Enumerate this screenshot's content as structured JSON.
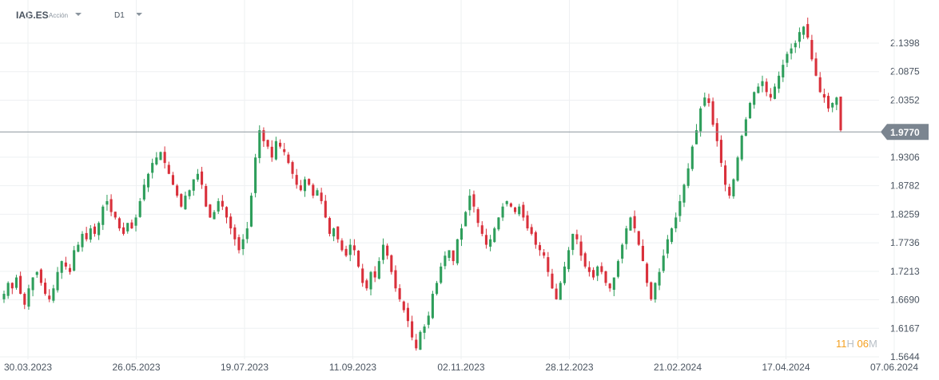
{
  "toolbar": {
    "symbol": "IAG.ES",
    "asset_type": "Acción",
    "timeframe": "D1"
  },
  "timer": {
    "hours": "11",
    "h_unit": "H",
    "minutes": "06",
    "m_unit": "M"
  },
  "colors": {
    "up": "#2e9e5b",
    "down": "#d9303b",
    "grid": "#eef0f2",
    "price_line": "#8c959d",
    "price_tag": "#7b8590"
  },
  "chart_data": {
    "type": "candlestick",
    "title": "",
    "xlabel": "",
    "ylabel": "",
    "ylim": [
      1.5644,
      2.1921
    ],
    "y_ticks": [
      "2.1398",
      "2.0875",
      "2.0352",
      "1.9306",
      "1.8782",
      "1.8259",
      "1.7736",
      "1.7213",
      "1.6690",
      "1.6167",
      "1.5644"
    ],
    "x_ticks": [
      "30.03.2023",
      "26.05.2023",
      "19.07.2023",
      "11.09.2023",
      "02.11.2023",
      "28.12.2023",
      "21.02.2024",
      "17.04.2024",
      "07.06.2024"
    ],
    "current_price": 1.977,
    "current_price_label": "1.9770",
    "grid": true,
    "approx_close_series": [
      1.68,
      1.7,
      1.69,
      1.71,
      1.68,
      1.66,
      1.69,
      1.71,
      1.72,
      1.7,
      1.68,
      1.67,
      1.69,
      1.72,
      1.74,
      1.73,
      1.72,
      1.76,
      1.77,
      1.79,
      1.78,
      1.8,
      1.79,
      1.81,
      1.84,
      1.85,
      1.83,
      1.82,
      1.8,
      1.79,
      1.81,
      1.8,
      1.82,
      1.85,
      1.88,
      1.9,
      1.92,
      1.93,
      1.94,
      1.92,
      1.9,
      1.88,
      1.86,
      1.84,
      1.86,
      1.87,
      1.89,
      1.9,
      1.88,
      1.84,
      1.82,
      1.83,
      1.85,
      1.84,
      1.82,
      1.8,
      1.78,
      1.76,
      1.78,
      1.8,
      1.86,
      1.93,
      1.98,
      1.96,
      1.95,
      1.93,
      1.96,
      1.95,
      1.94,
      1.92,
      1.9,
      1.88,
      1.87,
      1.89,
      1.88,
      1.86,
      1.87,
      1.85,
      1.82,
      1.79,
      1.8,
      1.78,
      1.76,
      1.75,
      1.77,
      1.76,
      1.73,
      1.7,
      1.69,
      1.72,
      1.71,
      1.74,
      1.77,
      1.75,
      1.72,
      1.69,
      1.67,
      1.65,
      1.63,
      1.6,
      1.58,
      1.61,
      1.62,
      1.64,
      1.68,
      1.7,
      1.73,
      1.75,
      1.76,
      1.74,
      1.78,
      1.8,
      1.83,
      1.86,
      1.84,
      1.81,
      1.79,
      1.77,
      1.78,
      1.8,
      1.82,
      1.84,
      1.85,
      1.84,
      1.83,
      1.84,
      1.82,
      1.8,
      1.79,
      1.77,
      1.76,
      1.75,
      1.72,
      1.69,
      1.67,
      1.7,
      1.73,
      1.76,
      1.79,
      1.78,
      1.75,
      1.73,
      1.72,
      1.71,
      1.73,
      1.72,
      1.7,
      1.69,
      1.71,
      1.74,
      1.77,
      1.8,
      1.82,
      1.8,
      1.77,
      1.74,
      1.7,
      1.67,
      1.7,
      1.72,
      1.75,
      1.78,
      1.8,
      1.82,
      1.85,
      1.88,
      1.91,
      1.95,
      1.98,
      2.02,
      2.04,
      2.03,
      1.99,
      1.96,
      1.92,
      1.88,
      1.86,
      1.89,
      1.93,
      1.97,
      2.0,
      2.03,
      2.05,
      2.06,
      2.07,
      2.05,
      2.04,
      2.06,
      2.08,
      2.1,
      2.12,
      2.13,
      2.14,
      2.16,
      2.17,
      2.15,
      2.11,
      2.08,
      2.05,
      2.04,
      2.02,
      2.03,
      2.04,
      1.98
    ]
  }
}
